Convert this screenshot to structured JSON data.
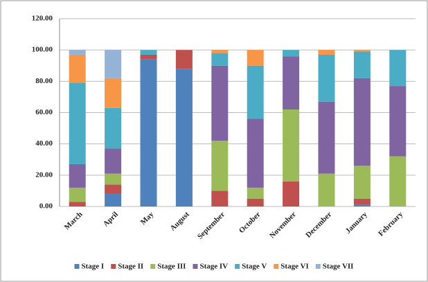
{
  "chart_data": {
    "type": "stacked-bar",
    "categories": [
      "March",
      "April",
      "May",
      "August",
      "September",
      "October",
      "November",
      "December",
      "January",
      "February"
    ],
    "series": [
      {
        "name": "Stage I",
        "color": "#4f81bd",
        "values": [
          0,
          8,
          94,
          88,
          0,
          0,
          0,
          0,
          1,
          0
        ]
      },
      {
        "name": "Stage II",
        "color": "#c0504d",
        "values": [
          3,
          6,
          3,
          12,
          10,
          5,
          16,
          0,
          4,
          0
        ]
      },
      {
        "name": "Stage III",
        "color": "#9bbb59",
        "values": [
          9,
          7,
          0,
          0,
          32,
          7,
          46,
          21,
          21,
          32
        ]
      },
      {
        "name": "Stage IV",
        "color": "#8064a2",
        "values": [
          15,
          16,
          0,
          0,
          48,
          44,
          34,
          46,
          56,
          45
        ]
      },
      {
        "name": "Stage V",
        "color": "#4bacc6",
        "values": [
          52,
          26,
          3,
          0,
          8,
          34,
          4,
          30,
          17,
          23
        ]
      },
      {
        "name": "Stage VI",
        "color": "#f79646",
        "values": [
          18,
          19,
          0,
          0,
          2,
          10,
          0,
          3,
          1,
          0
        ]
      },
      {
        "name": "Stage VII",
        "color": "#95b3d7",
        "values": [
          3,
          18,
          0,
          0,
          0,
          0,
          0,
          0,
          0,
          0
        ]
      }
    ],
    "ylim": [
      0,
      120
    ],
    "yticks": [
      {
        "value": 0,
        "label": "0.00"
      },
      {
        "value": 20,
        "label": "20.00"
      },
      {
        "value": 40,
        "label": "40.00"
      },
      {
        "value": 60,
        "label": "60.00"
      },
      {
        "value": 80,
        "label": "80.00"
      },
      {
        "value": 100,
        "label": "100.00"
      },
      {
        "value": 120,
        "label": "120.00"
      }
    ],
    "grid": true,
    "legend": "bottom"
  }
}
